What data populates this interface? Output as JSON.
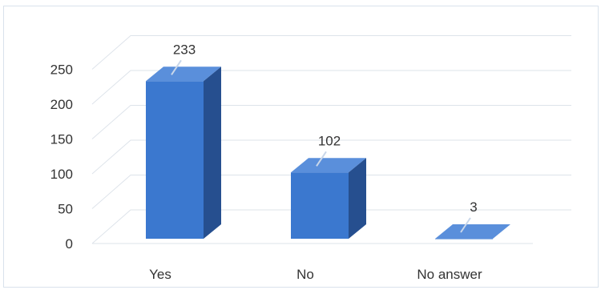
{
  "chart_data": {
    "type": "bar",
    "style": "3d-column",
    "categories": [
      "Yes",
      "No",
      "No answer"
    ],
    "values": [
      233,
      102,
      3
    ],
    "data_labels": [
      "233",
      "102",
      "3"
    ],
    "yticks": [
      "0",
      "50",
      "100",
      "150",
      "200",
      "250"
    ],
    "ylim": [
      0,
      250
    ],
    "grid": true,
    "legend": "none",
    "colors": {
      "bar_front": "#3b78cf",
      "bar_side": "#264f8f",
      "bar_top": "#5a8fdb",
      "grid": "#dde3ea",
      "leader": "#c9d7ea"
    }
  }
}
